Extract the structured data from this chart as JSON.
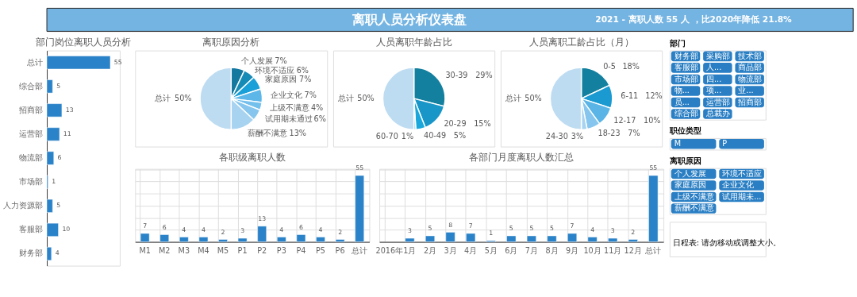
{
  "chart_data": [
    {
      "type": "other",
      "title": "离职人员分析仪表盘",
      "subtitle": "2021 - 离职人数 55 人 ，比2020年降低 21.8%"
    },
    {
      "type": "bar",
      "title": "部门岗位离职人员分析",
      "orientation": "horizontal",
      "categories": [
        "总计",
        "综合部",
        "招商部",
        "运营部",
        "物流部",
        "市场部",
        "人力资源部",
        "客服部",
        "财务部"
      ],
      "values": [
        55,
        5,
        13,
        11,
        6,
        1,
        5,
        10,
        4
      ],
      "color": "#2a82c8",
      "data_labels": true,
      "tick_labels": "y"
    },
    {
      "type": "pie",
      "title": "离职原因分析",
      "categories": [
        "个人发展",
        "环境不适应",
        "家庭原因",
        "企业文化",
        "上级不满意",
        "试用期未通过",
        "薪酬不满意",
        "总计"
      ],
      "values": [
        7,
        6,
        7,
        7,
        4,
        6,
        13,
        50
      ],
      "value_labels": [
        "7%",
        "6%",
        "7%",
        "7%",
        "4%",
        "6%",
        "13%",
        "50%"
      ],
      "colors": [
        "#14789f",
        "#168bb5",
        "#1aa0d8",
        "#5cb6e8",
        "#74c0ec",
        "#86c6ee",
        "#a8d3f0",
        "#bddcf2"
      ]
    },
    {
      "type": "pie",
      "title": "人员离职年龄占比",
      "categories": [
        "30-39",
        "20-29",
        "40-49",
        "60-70",
        "总计"
      ],
      "values": [
        29,
        15,
        5,
        1,
        50
      ],
      "value_labels": [
        "29%",
        "15%",
        "5%",
        "1%",
        "50%"
      ],
      "colors": [
        "#14809f",
        "#1896c8",
        "#1aa8dc",
        "#6cbce8",
        "#bddcf2"
      ]
    },
    {
      "type": "pie",
      "title": "人员离职工龄占比（月）",
      "categories": [
        "0-5",
        "6-11",
        "12-17",
        "18-23",
        "24-30",
        "总计"
      ],
      "values": [
        18,
        12,
        10,
        7,
        3,
        50
      ],
      "value_labels": [
        "18%",
        "12%",
        "10%",
        "7%",
        "3%",
        "50%"
      ],
      "colors": [
        "#14809f",
        "#1a9ad0",
        "#5ab4e6",
        "#86c6ee",
        "#a8d3f0",
        "#bddcf2"
      ]
    },
    {
      "type": "bar",
      "title": "各职级离职人数",
      "categories": [
        "M1",
        "M2",
        "M3",
        "M4",
        "M5",
        "P1",
        "P2",
        "P3",
        "P4",
        "P5",
        "P6",
        "总计"
      ],
      "values": [
        7,
        6,
        4,
        4,
        2,
        3,
        13,
        4,
        6,
        4,
        2,
        55
      ],
      "color": "#2a82c8",
      "data_labels": true,
      "tick_labels": "x",
      "grid": true
    },
    {
      "type": "bar",
      "title": "各部门月度离职人数汇总",
      "categories": [
        "2016年",
        "1月",
        "2月",
        "3月",
        "4月",
        "5月",
        "6月",
        "7月",
        "8月",
        "9月",
        "10月",
        "11月",
        "12月",
        "总计"
      ],
      "values": [
        null,
        3,
        5,
        8,
        7,
        1,
        5,
        5,
        5,
        7,
        4,
        3,
        2,
        55
      ],
      "color": "#2a82c8",
      "data_labels": true,
      "tick_labels": "x",
      "grid": true
    },
    {
      "type": "other",
      "title": "部门",
      "annotations": [
        "财务部",
        "采购部",
        "技术部",
        "客服部",
        "人...",
        "商品部",
        "市场部",
        "四...",
        "物流部",
        "物...",
        "项...",
        "业...",
        "员...",
        "运营部",
        "招商部",
        "综合部",
        "总裁办"
      ]
    },
    {
      "type": "other",
      "title": "职位类型",
      "annotations": [
        "M",
        "P"
      ]
    },
    {
      "type": "other",
      "title": "离职原因",
      "annotations": [
        "个人发展",
        "环境不适应",
        "家庭原因",
        "企业文化",
        "上级不满意",
        "试用期未...",
        "薪酬不满意"
      ]
    },
    {
      "type": "other",
      "annotations": [
        "日程表: 请勿移动或调整大小。"
      ]
    }
  ]
}
